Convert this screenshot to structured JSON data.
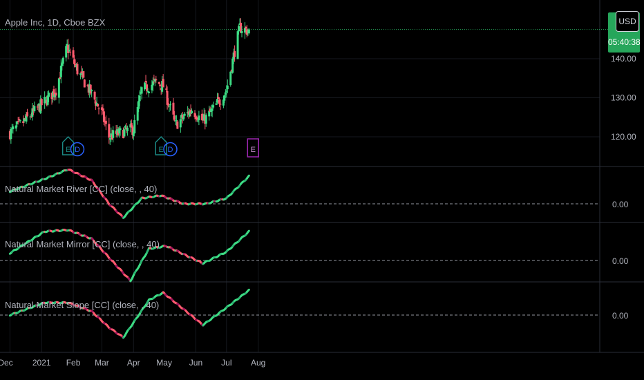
{
  "header": {
    "symbol_title": "Apple Inc, 1D, Cboe BZX",
    "currency": "USD",
    "countdown": "05:40:38",
    "last_price_partial": "14"
  },
  "colors": {
    "background": "#000000",
    "up": "#3ddc84",
    "down": "#ff5b6e",
    "purple": "#a3155a",
    "grid": "#16191f",
    "accent_green": "#26a65b",
    "event_e": "#1b8a85",
    "event_d": "#2962ff",
    "event_e_future": "#9c27b0"
  },
  "x_axis": {
    "labels": [
      "Dec",
      "2021",
      "Feb",
      "Mar",
      "Apr",
      "May",
      "Jun",
      "Jul",
      "Aug"
    ]
  },
  "price_axis": {
    "ticks": [
      "140.00",
      "130.00",
      "120.00"
    ]
  },
  "events": [
    {
      "label": "E",
      "kind": "earnings",
      "date": "2021-01-27"
    },
    {
      "label": "D",
      "kind": "dividend",
      "date": "2021-02-05"
    },
    {
      "label": "E",
      "kind": "earnings",
      "date": "2021-04-28"
    },
    {
      "label": "D",
      "kind": "dividend",
      "date": "2021-05-07"
    },
    {
      "label": "E",
      "kind": "earnings-upcoming",
      "date": "2021-07-27"
    }
  ],
  "indicators": [
    {
      "id": "river",
      "label": "Natural Market River [CC] (close, , 40)",
      "zero_label": "0.00"
    },
    {
      "id": "mirror",
      "label": "Natural Market Mirror [CC] (close, , 40)",
      "zero_label": "0.00"
    },
    {
      "id": "slope",
      "label": "Natural Market Slope [CC] (close, , 40)",
      "zero_label": "0.00"
    }
  ],
  "chart_data": [
    {
      "type": "candlestick",
      "title": "Apple Inc, 1D, Cboe BZX",
      "x": [
        "2020-12-01",
        "2020-12-15",
        "2021-01-04",
        "2021-01-15",
        "2021-01-26",
        "2021-02-05",
        "2021-02-19",
        "2021-03-01",
        "2021-03-08",
        "2021-03-19",
        "2021-04-01",
        "2021-04-09",
        "2021-04-23",
        "2021-04-30",
        "2021-05-12",
        "2021-05-28",
        "2021-06-08",
        "2021-06-18",
        "2021-07-01",
        "2021-07-09",
        "2021-07-14",
        "2021-07-23"
      ],
      "close": [
        121,
        124,
        129,
        132,
        143,
        137,
        131,
        126,
        120,
        121,
        122,
        132,
        134,
        133,
        123,
        127,
        124,
        127,
        132,
        142,
        148,
        147
      ],
      "ylim": [
        114,
        150
      ],
      "last_price": 147.5
    },
    {
      "type": "line",
      "title": "Natural Market River [CC] (close, , 40)",
      "x": [
        "2020-12-01",
        "2021-01-04",
        "2021-01-27",
        "2021-02-19",
        "2021-03-08",
        "2021-03-22",
        "2021-04-09",
        "2021-04-28",
        "2021-05-20",
        "2021-06-11",
        "2021-07-01",
        "2021-07-23"
      ],
      "values": [
        0.45,
        0.9,
        1.25,
        0.85,
        0.0,
        -0.5,
        0.2,
        0.3,
        0.0,
        0.0,
        0.2,
        1.0
      ],
      "zero_line": 0
    },
    {
      "type": "line",
      "title": "Natural Market Mirror [CC] (close, , 40)",
      "x": [
        "2020-12-01",
        "2021-01-04",
        "2021-01-27",
        "2021-02-19",
        "2021-03-08",
        "2021-03-29",
        "2021-04-16",
        "2021-05-03",
        "2021-05-24",
        "2021-06-08",
        "2021-07-01",
        "2021-07-23"
      ],
      "values": [
        0.25,
        1.0,
        1.05,
        0.75,
        0.1,
        -0.7,
        0.4,
        0.5,
        0.15,
        -0.1,
        0.3,
        1.0
      ],
      "zero_line": 0
    },
    {
      "type": "line",
      "title": "Natural Market Slope [CC] (close, , 40)",
      "x": [
        "2020-12-01",
        "2021-01-04",
        "2021-01-27",
        "2021-02-19",
        "2021-03-08",
        "2021-03-22",
        "2021-04-16",
        "2021-04-30",
        "2021-05-24",
        "2021-06-08",
        "2021-07-01",
        "2021-07-23"
      ],
      "values": [
        0.0,
        0.5,
        0.5,
        0.15,
        -0.5,
        -0.9,
        0.6,
        0.9,
        0.1,
        -0.4,
        0.3,
        1.0
      ],
      "zero_line": 0
    }
  ]
}
